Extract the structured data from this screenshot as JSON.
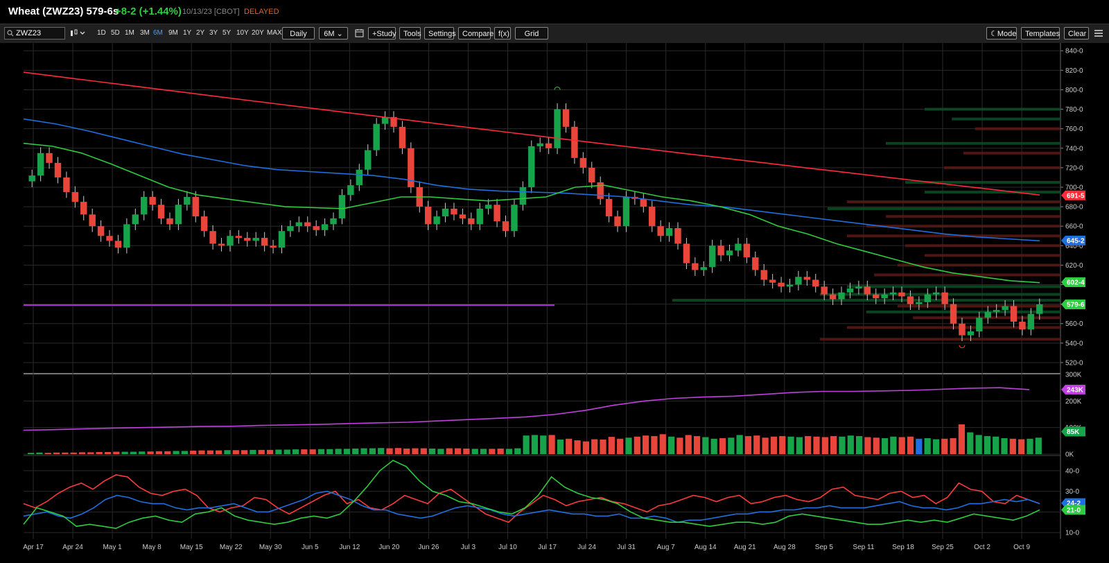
{
  "header": {
    "symbol": "Wheat (ZWZ23) 579-6s",
    "change": "+8-2 (+1.44%)",
    "date": "10/13/23",
    "exchange": "[CBOT]",
    "delayed": "DELAYED"
  },
  "toolbar": {
    "search_value": "ZWZ23",
    "ranges": [
      "1D",
      "5D",
      "1M",
      "3M",
      "6M",
      "9M",
      "1Y",
      "2Y",
      "3Y",
      "5Y",
      "10Y",
      "20Y",
      "MAX"
    ],
    "active_range": "6M",
    "interval": "Daily",
    "period": "6M",
    "study": "+Study",
    "tools": "Tools",
    "settings": "Settings",
    "compare": "Compare",
    "fx": "f(x)",
    "grid": "Grid",
    "mode": "Mode",
    "templates": "Templates",
    "clear": "Clear"
  },
  "sidebar": {
    "icons": [
      "line-tool-icon",
      "fib-tool-icon",
      "shape-tool-icon",
      "arrow-tool-icon",
      "annotation-tool-icon",
      "measure-tool-icon",
      "magnet-icon",
      "lock-icon",
      "undo-icon",
      "redo-icon"
    ]
  },
  "colors": {
    "up": "#16a34a",
    "down": "#e8463a",
    "ma_red": "#ff2a3a",
    "ma_blue": "#1f6fe0",
    "ma_green": "#2ecc40",
    "horizontal_line": "#b02ad8",
    "open_interest": "#c040e0",
    "rsi_red": "#ff3b3b",
    "rsi_blue": "#1f6fe0",
    "rsi_green": "#2ecc40"
  },
  "chart_data": [
    {
      "type": "candlestick",
      "price_axis": [
        "840-0",
        "820-0",
        "800-0",
        "780-0",
        "760-0",
        "740-0",
        "720-0",
        "700-0",
        "680-0",
        "660-0",
        "640-0",
        "620-0",
        "600-0",
        "580-0",
        "560-0",
        "540-0",
        "520-0"
      ],
      "ylim": [
        510,
        848
      ],
      "date_labels": [
        "Apr 17",
        "Apr 24",
        "May 1",
        "May 8",
        "May 15",
        "May 22",
        "May 30",
        "Jun 5",
        "Jun 12",
        "Jun 20",
        "Jun 26",
        "Jul 3",
        "Jul 10",
        "Jul 17",
        "Jul 24",
        "Jul 31",
        "Aug 7",
        "Aug 14",
        "Aug 21",
        "Aug 28",
        "Sep 5",
        "Sep 11",
        "Sep 18",
        "Sep 25",
        "Oct 2",
        "Oct 9"
      ],
      "closes": [
        712,
        735,
        725,
        710,
        695,
        685,
        672,
        660,
        650,
        645,
        638,
        662,
        672,
        690,
        682,
        668,
        662,
        682,
        690,
        670,
        655,
        642,
        640,
        650,
        648,
        645,
        648,
        640,
        638,
        655,
        660,
        664,
        660,
        656,
        662,
        668,
        692,
        702,
        718,
        738,
        765,
        772,
        762,
        740,
        700,
        680,
        662,
        670,
        678,
        672,
        668,
        662,
        678,
        682,
        665,
        655,
        682,
        700,
        742,
        745,
        740,
        780,
        762,
        730,
        720,
        705,
        688,
        670,
        660,
        690,
        688,
        680,
        660,
        650,
        658,
        642,
        622,
        615,
        618,
        640,
        630,
        635,
        642,
        628,
        615,
        605,
        602,
        598,
        600,
        608,
        605,
        598,
        590,
        585,
        592,
        596,
        598,
        590,
        586,
        590,
        592,
        588,
        580,
        582,
        590,
        592,
        580,
        560,
        548,
        552,
        566,
        572,
        574,
        578,
        562,
        554,
        570,
        579.75
      ],
      "price_labels": [
        {
          "text": "691-5",
          "value": 691.625,
          "color": "#ff2a3a"
        },
        {
          "text": "645-2",
          "value": 645.25,
          "color": "#1f6fe0"
        },
        {
          "text": "602-4",
          "value": 602.5,
          "color": "#2ecc40"
        },
        {
          "text": "579-6",
          "value": 579.75,
          "color": "#2ecc40"
        }
      ],
      "moving_averages": [
        {
          "name": "MA red",
          "start": 818,
          "end": 692
        },
        {
          "name": "MA blue",
          "start": 770,
          "end": 645
        },
        {
          "name": "MA green",
          "start": 745,
          "end": 602
        }
      ],
      "horizontal_line": 579
    },
    {
      "type": "bar",
      "axis": [
        "300K",
        "200K",
        "100K",
        "0K"
      ],
      "ylim": [
        0,
        300
      ],
      "price_labels": [
        {
          "text": "243K",
          "value": 243,
          "color": "#c040e0"
        },
        {
          "text": "85K",
          "value": 85,
          "color": "#16a34a"
        }
      ],
      "volume": [
        5,
        6,
        5,
        6,
        6,
        6,
        7,
        7,
        8,
        8,
        9,
        9,
        9,
        10,
        10,
        11,
        11,
        12,
        12,
        13,
        14,
        14,
        14,
        15,
        15,
        15,
        16,
        16,
        16,
        17,
        17,
        18,
        18,
        18,
        19,
        19,
        20,
        20,
        21,
        22,
        22,
        23,
        22,
        23,
        21,
        22,
        22,
        21,
        20,
        22,
        22,
        21,
        20,
        20,
        20,
        21,
        20,
        22,
        70,
        72,
        70,
        72,
        55,
        58,
        52,
        48,
        56,
        55,
        65,
        58,
        62,
        66,
        70,
        68,
        75,
        66,
        62,
        72,
        68,
        64,
        58,
        60,
        62,
        72,
        68,
        70,
        62,
        66,
        68,
        66,
        64,
        68,
        66,
        64,
        68,
        66,
        70,
        68,
        64,
        62,
        60,
        66,
        64,
        66,
        58,
        60,
        56,
        58,
        60,
        112,
        82,
        72,
        68,
        66,
        60,
        58,
        56,
        58,
        62
      ],
      "open_interest": [
        90,
        92,
        95,
        98,
        100,
        102,
        104,
        105,
        108,
        110,
        112,
        115,
        118,
        120,
        125,
        130,
        135,
        140,
        150,
        165,
        185,
        200,
        210,
        215,
        218,
        225,
        232,
        236,
        236,
        238,
        240,
        244,
        248,
        250,
        243
      ]
    },
    {
      "type": "line",
      "axis": [
        "40-0",
        "30-0",
        "20-0",
        "10-0"
      ],
      "ylim": [
        7,
        47
      ],
      "price_labels": [
        {
          "text": "24-2",
          "value": 24.25,
          "color": "#1f6fe0"
        },
        {
          "text": "21-0",
          "value": 21.0,
          "color": "#2ecc40"
        }
      ],
      "series": [
        {
          "name": "red",
          "values": [
            24,
            22,
            25,
            29,
            32,
            34,
            31,
            35,
            38,
            37,
            32,
            29,
            28,
            30,
            31,
            28,
            22,
            20,
            22,
            23,
            27,
            26,
            22,
            19,
            22,
            25,
            28,
            30,
            24,
            26,
            22,
            21,
            24,
            28,
            26,
            24,
            29,
            31,
            27,
            23,
            19,
            17,
            15,
            20,
            24,
            28,
            26,
            23,
            25,
            26,
            27,
            25,
            24,
            22,
            20,
            23,
            24,
            26,
            28,
            27,
            25,
            27,
            28,
            24,
            25,
            27,
            28,
            26,
            25,
            27,
            31,
            32,
            28,
            27,
            26,
            29,
            30,
            27,
            28,
            24,
            27,
            34,
            31,
            30,
            25,
            24,
            28,
            26,
            24
          ]
        },
        {
          "name": "blue",
          "values": [
            18,
            19,
            20,
            18,
            17,
            19,
            22,
            26,
            28,
            27,
            25,
            24,
            24,
            22,
            21,
            22,
            22,
            23,
            24,
            22,
            20,
            20,
            22,
            24,
            26,
            29,
            30,
            28,
            26,
            23,
            21,
            21,
            19,
            18,
            17,
            18,
            20,
            22,
            23,
            22,
            21,
            19,
            18,
            19,
            20,
            21,
            20,
            19,
            19,
            18,
            18,
            19,
            17,
            17,
            18,
            17,
            15,
            16,
            16,
            17,
            18,
            19,
            19,
            20,
            20,
            21,
            21,
            22,
            22,
            23,
            22,
            22,
            22,
            23,
            24,
            25,
            23,
            22,
            22,
            21,
            22,
            24,
            24,
            25,
            26,
            25,
            26,
            24
          ]
        },
        {
          "name": "green",
          "values": [
            14,
            22,
            20,
            18,
            13,
            14,
            13,
            12,
            15,
            17,
            18,
            16,
            15,
            19,
            20,
            22,
            18,
            16,
            15,
            14,
            15,
            17,
            18,
            17,
            19,
            25,
            32,
            40,
            45,
            42,
            35,
            30,
            28,
            25,
            24,
            22,
            20,
            19,
            22,
            28,
            37,
            32,
            29,
            27,
            26,
            24,
            20,
            17,
            16,
            15,
            15,
            14,
            13,
            14,
            15,
            15,
            14,
            15,
            18,
            19,
            18,
            17,
            16,
            15,
            14,
            14,
            15,
            16,
            15,
            16,
            15,
            17,
            19,
            18,
            17,
            16,
            18,
            21
          ]
        }
      ]
    }
  ]
}
